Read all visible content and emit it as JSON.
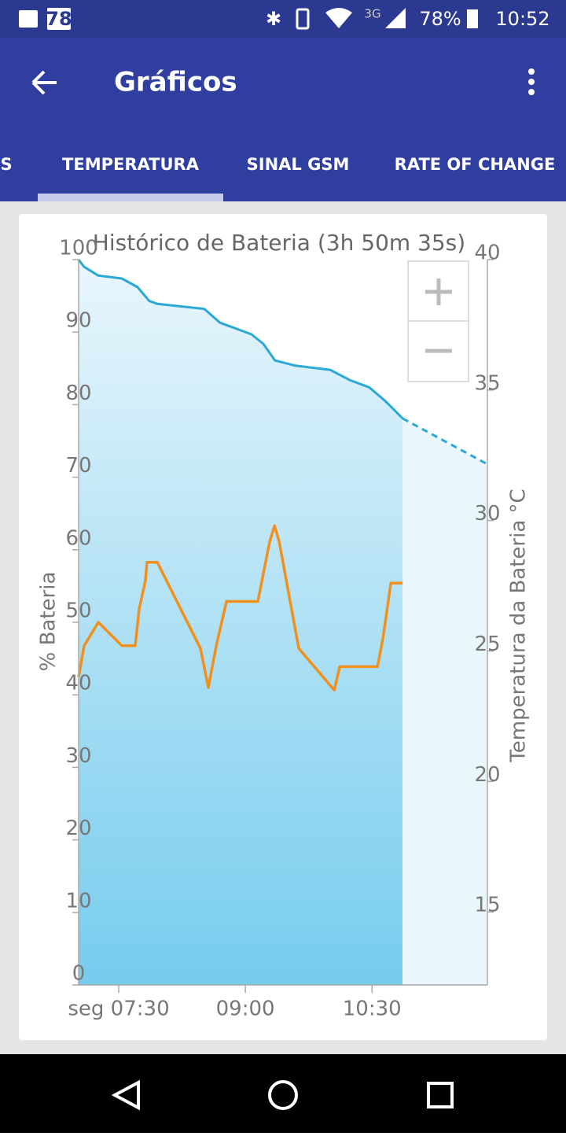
{
  "status_bar": {
    "notification": "78",
    "network": "3G",
    "battery": "78%",
    "time": "10:52"
  },
  "app_bar": {
    "title": "Gráficos"
  },
  "tabs": [
    "S",
    "TEMPERATURA",
    "SINAL GSM",
    "RATE OF CHANGE"
  ],
  "chart_data": {
    "type": "line",
    "title": "Histórico de Bateria (3h 50m 35s)",
    "y_label": "% Bateria",
    "y2_label": "Temperatura da Bateria °C",
    "xlim": [
      421.5,
      712
    ],
    "xticks": [
      {
        "value": 450,
        "label": "seg 07:30"
      },
      {
        "value": 540,
        "label": "09:00"
      },
      {
        "value": 630,
        "label": "10:30"
      }
    ],
    "ylim": [
      0,
      100
    ],
    "yticks": [
      0,
      10,
      20,
      30,
      40,
      50,
      60,
      70,
      80,
      90,
      100
    ],
    "y2lim": [
      12.2,
      40
    ],
    "y2ticks": [
      15,
      20,
      25,
      30,
      35,
      40
    ],
    "series": [
      {
        "color": "#2aa9d2",
        "fill": true,
        "x": [
          421.5,
          425.4,
          435.5,
          452.2,
          463.4,
          471.7,
          477.4,
          510.9,
          522,
          544.4,
          552.7,
          561.1,
          575,
          600.2,
          614.2,
          628,
          639.5,
          651.8
        ],
        "values": [
          100,
          99,
          97.8,
          97.4,
          96.2,
          94.3,
          93.9,
          93.2,
          91.3,
          89.7,
          88.4,
          86.1,
          85.4,
          84.8,
          83.4,
          82.4,
          80.5,
          78.1
        ]
      },
      {
        "color": "#2aa9d2",
        "fill": true,
        "dashed": true,
        "x": [
          651.8,
          712
        ],
        "values": [
          78.1,
          71.8
        ]
      },
      {
        "color": "#f0901f",
        "axis": "y2",
        "x": [
          421.5,
          425.4,
          435.5,
          452.2,
          461.7,
          464.5,
          469,
          470.1,
          477.4,
          508.1,
          513.7,
          519.3,
          526.6,
          548.9,
          557.3,
          560.7,
          564,
          578,
          603.2,
          607.1,
          633.9,
          637.8,
          643.4,
          651.8
        ],
        "values": [
          24.0,
          25.2,
          26.1,
          25.2,
          25.2,
          26.6,
          27.7,
          28.4,
          28.4,
          25.1,
          23.6,
          25.2,
          26.9,
          26.9,
          29.2,
          29.8,
          29.2,
          25.1,
          23.5,
          24.4,
          24.4,
          25.5,
          27.6,
          27.6
        ]
      }
    ]
  }
}
